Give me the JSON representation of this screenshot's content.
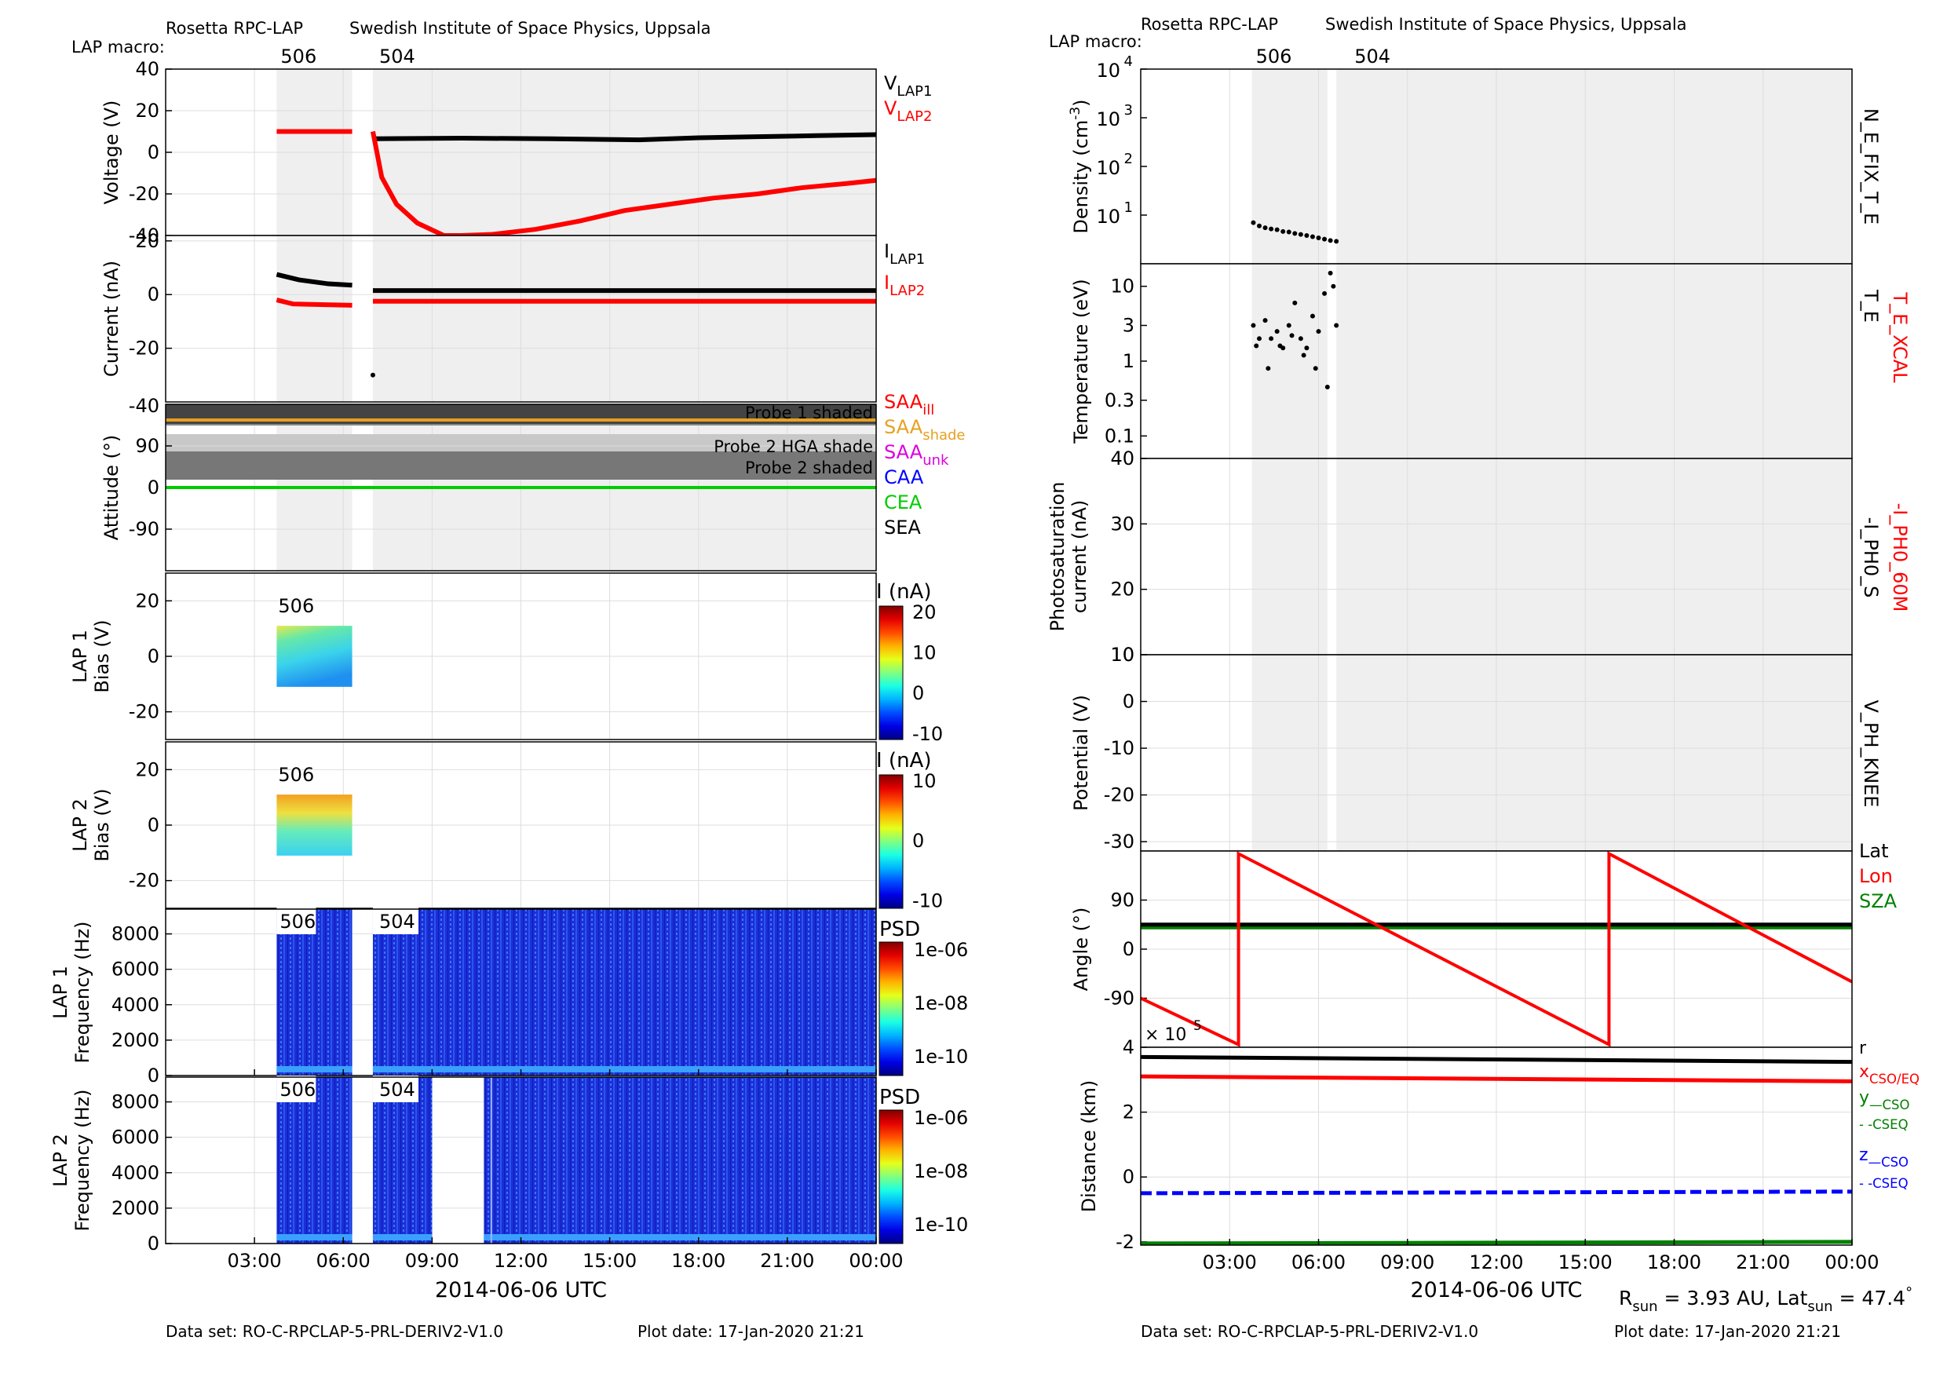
{
  "header": {
    "left_institution": "Rosetta RPC-LAP",
    "right_institution": "Swedish Institute of Space Physics, Uppsala",
    "macro_label": "LAP macro:",
    "macros": [
      {
        "id": "506",
        "start_h": 3.75
      },
      {
        "id": "504",
        "start_h": 7.0
      }
    ]
  },
  "footer": {
    "dataset": "Data set: RO-C-RPCLAP-5-PRL-DERIV2-V1.0",
    "plot_date": "Plot date: 17-Jan-2020 21:21"
  },
  "time_axis": {
    "xlabel": "2014-06-06 UTC",
    "range_h": [
      0,
      24
    ],
    "tick_labels": [
      "03:00",
      "06:00",
      "09:00",
      "12:00",
      "15:00",
      "18:00",
      "21:00",
      "00:00"
    ]
  },
  "sun_info": {
    "r_sun": "R",
    "r_sub": "sun",
    "r_val": " = 3.93 AU, Lat",
    "lat_sub": "sun",
    "lat_val": " = 47.4",
    "deg": "°"
  },
  "colors": {
    "black": "#000000",
    "red": "#ff0000",
    "orange": "#e8a020",
    "magenta": "#dd00dd",
    "blue": "#0000ff",
    "green": "#00cc00",
    "darkgreen": "#008000",
    "shade": "#efefef",
    "grid": "#dddddd"
  },
  "left_panels": [
    {
      "ylabel": "Voltage (V)",
      "ticks": [
        "40",
        "20",
        "0",
        "-20",
        "-40"
      ],
      "legend": [
        {
          "main": "V",
          "sub": "LAP1",
          "color": "#000000"
        },
        {
          "main": "V",
          "sub": "LAP2",
          "color": "#ff0000"
        }
      ]
    },
    {
      "ylabel": "Current (nA)",
      "ticks": [
        "20",
        "0",
        "-20",
        "-40"
      ],
      "legend": [
        {
          "main": "I",
          "sub": "LAP1",
          "color": "#000000"
        },
        {
          "main": "I",
          "sub": "LAP2",
          "color": "#ff0000"
        }
      ]
    },
    {
      "ylabel": "Attitude (°)",
      "ticks": [
        "90",
        "0",
        "-90"
      ],
      "bands": [
        "Probe 1 shaded",
        "Probe 2 HGA shade",
        "Probe 2 shaded"
      ],
      "legend": [
        {
          "main": "SAA",
          "sub": "ill",
          "color": "#ff0000"
        },
        {
          "main": "SAA",
          "sub": "shade",
          "color": "#e8a020"
        },
        {
          "main": "SAA",
          "sub": "unk",
          "color": "#dd00dd"
        },
        {
          "main": "CAA",
          "sub": "",
          "color": "#0000ff"
        },
        {
          "main": "CEA",
          "sub": "",
          "color": "#00cc00"
        },
        {
          "main": "SEA",
          "sub": "",
          "color": "#000000"
        }
      ]
    },
    {
      "ylabel1": "LAP 1",
      "ylabel2": "Bias (V)",
      "ticks": [
        "20",
        "0",
        "-20"
      ],
      "macro": "506",
      "cbar_title": "I (nA)",
      "cbar_ticks": [
        "20",
        "10",
        "0",
        "-10"
      ]
    },
    {
      "ylabel1": "LAP 2",
      "ylabel2": "Bias (V)",
      "ticks": [
        "20",
        "0",
        "-20"
      ],
      "macro": "506",
      "cbar_title": "I (nA)",
      "cbar_ticks": [
        "10",
        "0",
        "-10"
      ]
    },
    {
      "ylabel1": "LAP 1",
      "ylabel2": "Frequency (Hz)",
      "ticks": [
        "8000",
        "6000",
        "4000",
        "2000",
        "0"
      ],
      "macros": [
        "506",
        "504"
      ],
      "cbar_title": "PSD",
      "cbar_ticks": [
        "1e-06",
        "1e-08",
        "1e-10"
      ]
    },
    {
      "ylabel1": "LAP 2",
      "ylabel2": "Frequency (Hz)",
      "ticks": [
        "8000",
        "6000",
        "4000",
        "2000",
        "0"
      ],
      "macros": [
        "506",
        "504"
      ],
      "cbar_title": "PSD",
      "cbar_ticks": [
        "1e-06",
        "1e-08",
        "1e-10"
      ]
    }
  ],
  "right_panels": [
    {
      "ylabel": "Density (cm",
      "ylabel_sup": "-3",
      "ylabel_end": ")",
      "ticks": [
        {
          "b": "10",
          "e": "4"
        },
        {
          "b": "10",
          "e": "3"
        },
        {
          "b": "10",
          "e": "2"
        },
        {
          "b": "10",
          "e": "1"
        }
      ],
      "side_label": "N_E_FIX_T_E"
    },
    {
      "ylabel": "Temperature (eV)",
      "ticks": [
        "10",
        "3",
        "1",
        "0.3",
        "0.1"
      ],
      "side_label": "T_E",
      "side_label2": "T_E_XCAL"
    },
    {
      "ylabel1": "Photosaturation",
      "ylabel2": "current (nA)",
      "ticks": [
        "40",
        "30",
        "20",
        "10"
      ],
      "side_label": "-I_PH0_S",
      "side_label2": "-I_PH0_60M"
    },
    {
      "ylabel": "Potential (V)",
      "ticks": [
        "10",
        "0",
        "-10",
        "-20",
        "-30"
      ],
      "side_label": "V_PH_KNEE"
    },
    {
      "ylabel": "Angle (°)",
      "ticks": [
        "90",
        "0",
        "-90"
      ],
      "legend": [
        {
          "main": "Lat",
          "color": "#000000"
        },
        {
          "main": "Lon",
          "color": "#ff0000"
        },
        {
          "main": "SZA",
          "color": "#008000"
        }
      ]
    },
    {
      "ylabel": "Distance (km)",
      "ticks": [
        "4",
        "2",
        "0",
        "-2"
      ],
      "exponent_base": "× 10",
      "exponent": "5",
      "legend": [
        {
          "main": "r",
          "sub": "",
          "color": "#000000"
        },
        {
          "main": "x",
          "sub": "CSO/EQ",
          "color": "#ff0000"
        },
        {
          "main": "y",
          "sub": "—CSO",
          "color": "#008000"
        },
        {
          "main": "",
          "sub": "- -CSEQ",
          "color": "#008000"
        },
        {
          "main": "z",
          "sub": "—CSO",
          "color": "#0000ff"
        },
        {
          "main": "",
          "sub": "- -CSEQ",
          "color": "#0000ff"
        }
      ]
    }
  ],
  "chart_data": [
    {
      "type": "line",
      "title": "",
      "ylabel": "Voltage (V)",
      "ylim": [
        -40,
        40
      ],
      "xlabel": "2014-06-06 UTC",
      "series": [
        {
          "name": "V_LAP1",
          "x": [
            7.0,
            10,
            13,
            16,
            18,
            20,
            22,
            24
          ],
          "values": [
            6.5,
            6.8,
            6.5,
            6,
            7.0,
            7.5,
            8,
            8.5
          ]
        },
        {
          "name": "V_LAP2",
          "x": [
            3.75,
            6.3
          ],
          "values": [
            10,
            10
          ]
        },
        {
          "name": "V_LAP2",
          "x": [
            7.0,
            7.3,
            7.8,
            8.5,
            9.4,
            10,
            11,
            12.5,
            14,
            15.5,
            17,
            18.5,
            20,
            21.5,
            23,
            24
          ],
          "values": [
            10,
            -12,
            -25,
            -34,
            -40,
            -40,
            -39.5,
            -37,
            -33,
            -28,
            -25,
            -22,
            -20,
            -17,
            -15,
            -13.5
          ]
        }
      ]
    },
    {
      "type": "line",
      "title": "",
      "ylabel": "Current (nA)",
      "ylim": [
        -40,
        20
      ],
      "xlabel": "2014-06-06 UTC",
      "series": [
        {
          "name": "I_LAP1",
          "x": [
            3.75,
            4.5,
            5.5,
            6.3
          ],
          "values": [
            7.5,
            5.5,
            4,
            3.5
          ]
        },
        {
          "name": "I_LAP1",
          "x": [
            7.0,
            24
          ],
          "values": [
            1.5,
            1.5
          ]
        },
        {
          "name": "I_LAP2",
          "x": [
            3.75,
            4.3,
            6.3
          ],
          "values": [
            -2,
            -3.5,
            -4
          ]
        },
        {
          "name": "I_LAP2",
          "x": [
            7.0,
            24
          ],
          "values": [
            -2.5,
            -2.5
          ]
        }
      ]
    },
    {
      "type": "line",
      "title": "",
      "ylabel": "Attitude (°)",
      "ylim": [
        -180,
        180
      ],
      "xlabel": "2014-06-06 UTC",
      "series": [
        {
          "name": "CEA",
          "x": [
            0,
            24
          ],
          "values": [
            0,
            0
          ]
        },
        {
          "name": "SAA_shade",
          "x": [
            0,
            24
          ],
          "values": [
            155,
            155
          ]
        }
      ]
    },
    {
      "type": "heatmap",
      "title": "",
      "ylabel": "Bias (V)",
      "ylim": [
        -30,
        30
      ],
      "x_range": [
        3.75,
        6.3
      ],
      "y_range": [
        -11,
        11
      ],
      "colorbar": "I (nA)",
      "clim": [
        -12,
        20
      ]
    },
    {
      "type": "heatmap",
      "title": "",
      "ylabel": "Bias (V)",
      "ylim": [
        -30,
        30
      ],
      "x_range": [
        3.75,
        6.3
      ],
      "y_range": [
        -11,
        11
      ],
      "colorbar": "I (nA)",
      "clim": [
        -12,
        10
      ]
    },
    {
      "type": "heatmap",
      "title": "",
      "ylabel": "Frequency (Hz)",
      "ylim": [
        0,
        9400
      ],
      "x_ranges": [
        [
          3.75,
          6.3
        ],
        [
          7.0,
          24
        ]
      ],
      "colorbar": "PSD"
    },
    {
      "type": "heatmap",
      "title": "",
      "ylabel": "Frequency (Hz)",
      "ylim": [
        0,
        9400
      ],
      "x_ranges": [
        [
          3.75,
          6.3
        ],
        [
          7.0,
          9.0
        ],
        [
          10.75,
          24
        ]
      ],
      "colorbar": "PSD"
    },
    {
      "type": "scatter",
      "title": "",
      "ylabel": "Density (cm-3)",
      "scale": "log",
      "ylim": [
        1,
        10000
      ],
      "xlabel": "2014-06-06 UTC",
      "series": [
        {
          "name": "N_E_FIX_T_E",
          "x": [
            3.8,
            4.0,
            4.2,
            4.4,
            4.6,
            4.8,
            5.0,
            5.2,
            5.4,
            5.6,
            5.8,
            6.0,
            6.2,
            6.4,
            6.6
          ],
          "values": [
            7,
            6,
            5.5,
            5.2,
            5,
            4.6,
            4.5,
            4.2,
            4,
            3.8,
            3.6,
            3.4,
            3.2,
            3,
            2.9
          ]
        }
      ]
    },
    {
      "type": "scatter",
      "title": "",
      "ylabel": "Temperature (eV)",
      "scale": "log",
      "ylim": [
        0.05,
        20
      ],
      "xlabel": "2014-06-06 UTC",
      "series": [
        {
          "name": "T_E",
          "x": [
            3.8,
            4.0,
            4.2,
            4.4,
            4.6,
            4.8,
            5.0,
            5.2,
            5.4,
            5.6,
            5.8,
            6.0,
            6.2,
            6.4,
            6.6,
            3.9,
            4.3,
            4.7,
            5.1,
            5.5,
            5.9,
            6.3,
            6.5
          ],
          "values": [
            3,
            2,
            3.5,
            2,
            2.5,
            1.5,
            3,
            6,
            2,
            1.5,
            4,
            2.5,
            8,
            15,
            3,
            1.6,
            0.8,
            1.6,
            2.2,
            1.2,
            0.8,
            0.45,
            10
          ]
        }
      ]
    },
    {
      "type": "line",
      "title": "",
      "ylabel": "Photosaturation current (nA)",
      "ylim": [
        10,
        40
      ],
      "xlabel": "2014-06-06 UTC",
      "series": []
    },
    {
      "type": "line",
      "title": "",
      "ylabel": "Potential (V)",
      "ylim": [
        -32,
        10
      ],
      "xlabel": "2014-06-06 UTC",
      "series": []
    },
    {
      "type": "line",
      "title": "",
      "ylabel": "Angle (°)",
      "ylim": [
        -180,
        180
      ],
      "xlabel": "2014-06-06 UTC",
      "series": [
        {
          "name": "Lat",
          "x": [
            0,
            24
          ],
          "values": [
            45,
            45
          ]
        },
        {
          "name": "Lon",
          "x": [
            0,
            3.3,
            3.3,
            15.8,
            15.8,
            24
          ],
          "values": [
            -90,
            -175,
            175,
            -175,
            175,
            -60
          ]
        },
        {
          "name": "SZA",
          "x": [
            0,
            24
          ],
          "values": [
            40,
            40
          ]
        }
      ]
    },
    {
      "type": "line",
      "title": "",
      "ylabel": "Distance (km) ×10^5",
      "ylim": [
        -2.1,
        4
      ],
      "xlabel": "2014-06-06 UTC",
      "series": [
        {
          "name": "r",
          "x": [
            0,
            24
          ],
          "values": [
            3.7,
            3.55
          ]
        },
        {
          "name": "x CSO/EQ",
          "x": [
            0,
            24
          ],
          "values": [
            3.1,
            2.95
          ]
        },
        {
          "name": "y CSO",
          "x": [
            0,
            24
          ],
          "values": [
            -2.05,
            -2.0
          ]
        },
        {
          "name": "z CSO",
          "x": [
            0,
            24
          ],
          "values": [
            -0.5,
            -0.45
          ]
        }
      ]
    }
  ]
}
